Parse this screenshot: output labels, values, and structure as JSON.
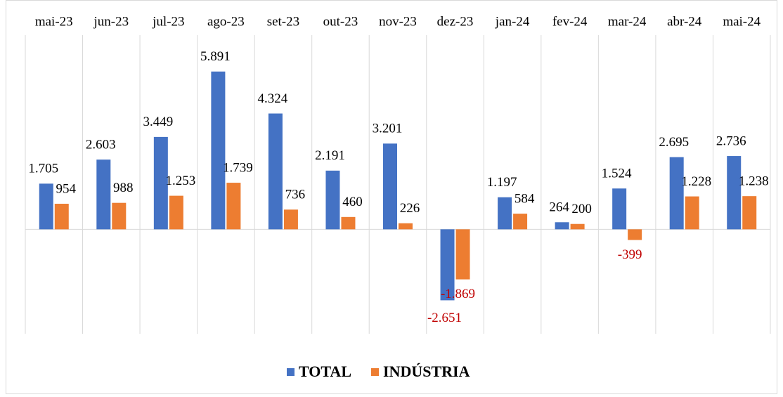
{
  "chart_data": {
    "type": "bar",
    "categories": [
      "mai-23",
      "jun-23",
      "jul-23",
      "ago-23",
      "set-23",
      "out-23",
      "nov-23",
      "dez-23",
      "jan-24",
      "fev-24",
      "mar-24",
      "abr-24",
      "mai-24"
    ],
    "series": [
      {
        "name": "TOTAL",
        "color": "#4472c4",
        "values": [
          1705,
          2603,
          3449,
          5891,
          4324,
          2191,
          3201,
          -2651,
          1197,
          264,
          1524,
          2695,
          2736
        ],
        "value_labels": [
          "1.705",
          "2.603",
          "3.449",
          "5.891",
          "4.324",
          "2.191",
          "3.201",
          "-2.651",
          "1.197",
          "264",
          "1.524",
          "2.695",
          "2.736"
        ]
      },
      {
        "name": "INDÚSTRIA",
        "color": "#ed7d31",
        "values": [
          954,
          988,
          1253,
          1739,
          736,
          460,
          226,
          -1869,
          584,
          200,
          -399,
          1228,
          1238
        ],
        "value_labels": [
          "954",
          "988",
          "1.253",
          "1.739",
          "736",
          "460",
          "226",
          "-1.869",
          "584",
          "200",
          "-399",
          "1.228",
          "1.238"
        ]
      }
    ],
    "ylim": [
      -3900,
      7250
    ],
    "negative_label_color": "#c00000",
    "legend": "bottom"
  }
}
